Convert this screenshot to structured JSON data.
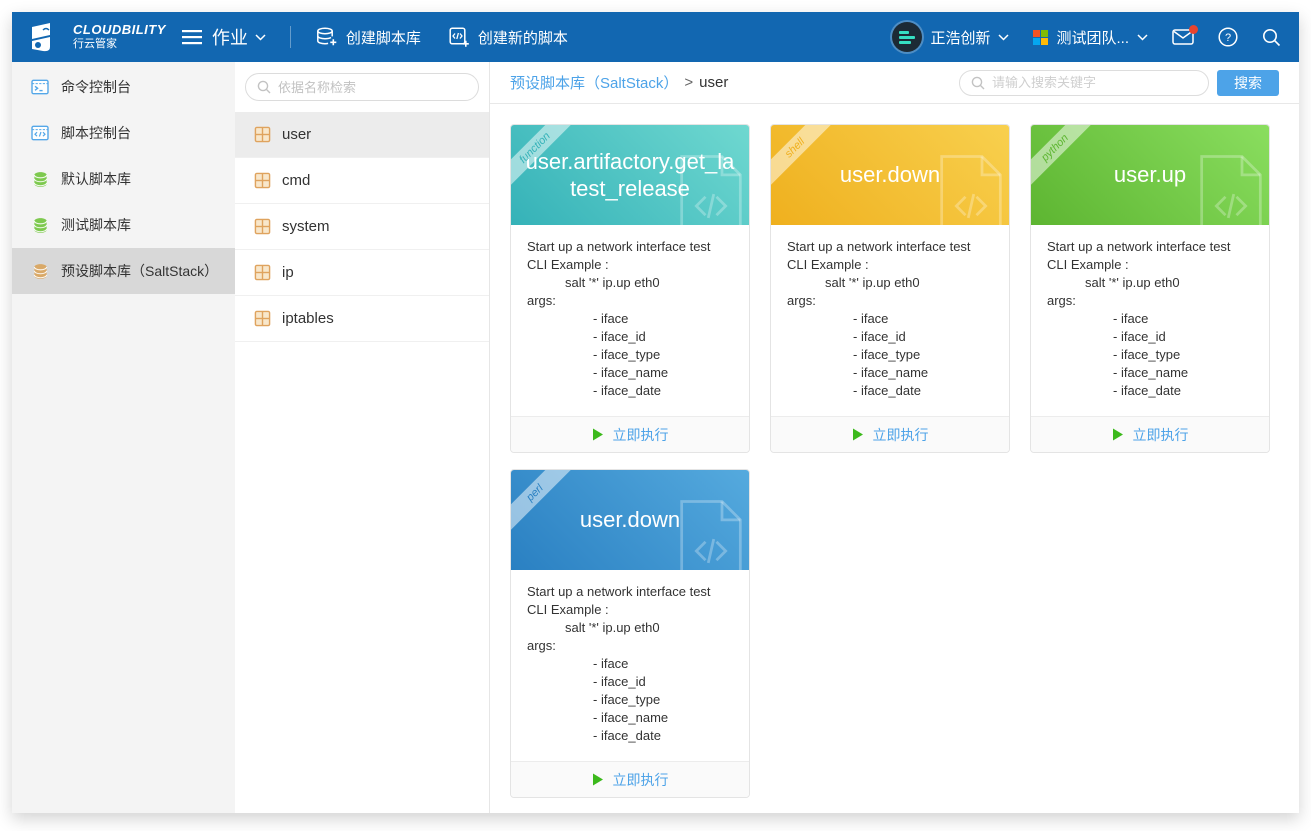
{
  "topbar": {
    "brand_name": "CLOUDBILITY",
    "brand_sub": "行云管家",
    "module_label": "作业",
    "action_create_library": "创建脚本库",
    "action_create_script": "创建新的脚本",
    "user_name": "正浩创新",
    "team_name": "测试团队...",
    "mail_unread": true
  },
  "sidebar": {
    "items": [
      {
        "label": "命令控制台",
        "icon": "terminal-icon",
        "color": "#54a7e8",
        "active": false
      },
      {
        "label": "脚本控制台",
        "icon": "code-console-icon",
        "color": "#54a7e8",
        "active": false
      },
      {
        "label": "默认脚本库",
        "icon": "database-icon",
        "color": "#7ec94f",
        "active": false
      },
      {
        "label": "测试脚本库",
        "icon": "database-icon",
        "color": "#7ec94f",
        "active": false
      },
      {
        "label": "预设脚本库（SaltStack）",
        "icon": "database-icon",
        "color": "#d9a968",
        "active": true
      }
    ]
  },
  "list_panel": {
    "search_placeholder": "依据名称检索",
    "items": [
      {
        "label": "user",
        "active": true
      },
      {
        "label": "cmd",
        "active": false
      },
      {
        "label": "system",
        "active": false
      },
      {
        "label": "ip",
        "active": false
      },
      {
        "label": "iptables",
        "active": false
      }
    ]
  },
  "main": {
    "breadcrumb_parent": "预设脚本库（SaltStack）",
    "breadcrumb_sep": ">",
    "breadcrumb_current": "user",
    "search_placeholder": "请输入搜索关键字",
    "search_button": "搜索",
    "run_label": "立即执行",
    "cards": [
      {
        "title": "user.artifactory.get_latest_release",
        "tag": "function",
        "color_base": "#35b2b8",
        "color_light": "#6fd8d0"
      },
      {
        "title": "user.down",
        "tag": "shell",
        "color_base": "#efb01e",
        "color_light": "#f8d04e"
      },
      {
        "title": "user.up",
        "tag": "python",
        "color_base": "#5db531",
        "color_light": "#8ade5f"
      },
      {
        "title": "user.down",
        "tag": "perl",
        "color_base": "#2a80c2",
        "color_light": "#55aade"
      }
    ],
    "card_description": [
      {
        "indent": 0,
        "text": "Start up a network interface test"
      },
      {
        "indent": 0,
        "text": "CLI Example :"
      },
      {
        "indent": 1,
        "text": "salt '*' ip.up eth0"
      },
      {
        "indent": 0,
        "text": "args:"
      },
      {
        "indent": 2,
        "text": "- iface"
      },
      {
        "indent": 2,
        "text": "- iface_id"
      },
      {
        "indent": 2,
        "text": "- iface_type"
      },
      {
        "indent": 2,
        "text": "- iface_name"
      },
      {
        "indent": 2,
        "text": "- iface_date"
      }
    ]
  },
  "colors": {
    "topbar_blue": "#1267b1",
    "accent_blue": "#4da3e8",
    "play_green": "#3cb91c",
    "sidebar_bg": "#f4f4f4",
    "active_gray": "#d8d8d8"
  }
}
